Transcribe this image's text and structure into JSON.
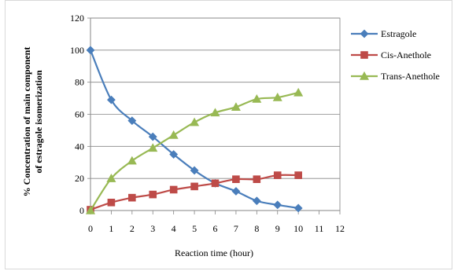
{
  "chart_data": {
    "type": "line",
    "title": "",
    "xlabel": "Reaction time (hour)",
    "ylabel_line1": "% Concentration of main component",
    "ylabel_line2": "of estragole isomerization",
    "xlim": [
      0,
      12
    ],
    "ylim": [
      0,
      120
    ],
    "x_ticks": [
      "0",
      "1",
      "2",
      "3",
      "4",
      "5",
      "6",
      "7",
      "8",
      "9",
      "10",
      "11",
      "12"
    ],
    "y_ticks": [
      "0",
      "20",
      "40",
      "60",
      "80",
      "100",
      "120"
    ],
    "grid": true,
    "legend_position": "right",
    "x": [
      0,
      1,
      2,
      3,
      4,
      5,
      6,
      7,
      8,
      9,
      10
    ],
    "series": [
      {
        "name": "Estragole",
        "marker": "diamond",
        "color": "#4a7ebb",
        "values": [
          100,
          69,
          56,
          46,
          35,
          25,
          17,
          12,
          6,
          3.5,
          1.5
        ]
      },
      {
        "name": "Cis-Anethole",
        "marker": "square",
        "color": "#be4b48",
        "values": [
          0.5,
          5,
          8,
          10,
          13,
          15,
          17,
          19.5,
          19.5,
          22,
          22
        ]
      },
      {
        "name": "Trans-Anethole",
        "marker": "triangle",
        "color": "#98b954",
        "values": [
          0,
          20,
          31,
          39,
          47,
          55,
          61,
          64.5,
          69.5,
          70.5,
          73.5
        ]
      }
    ]
  }
}
